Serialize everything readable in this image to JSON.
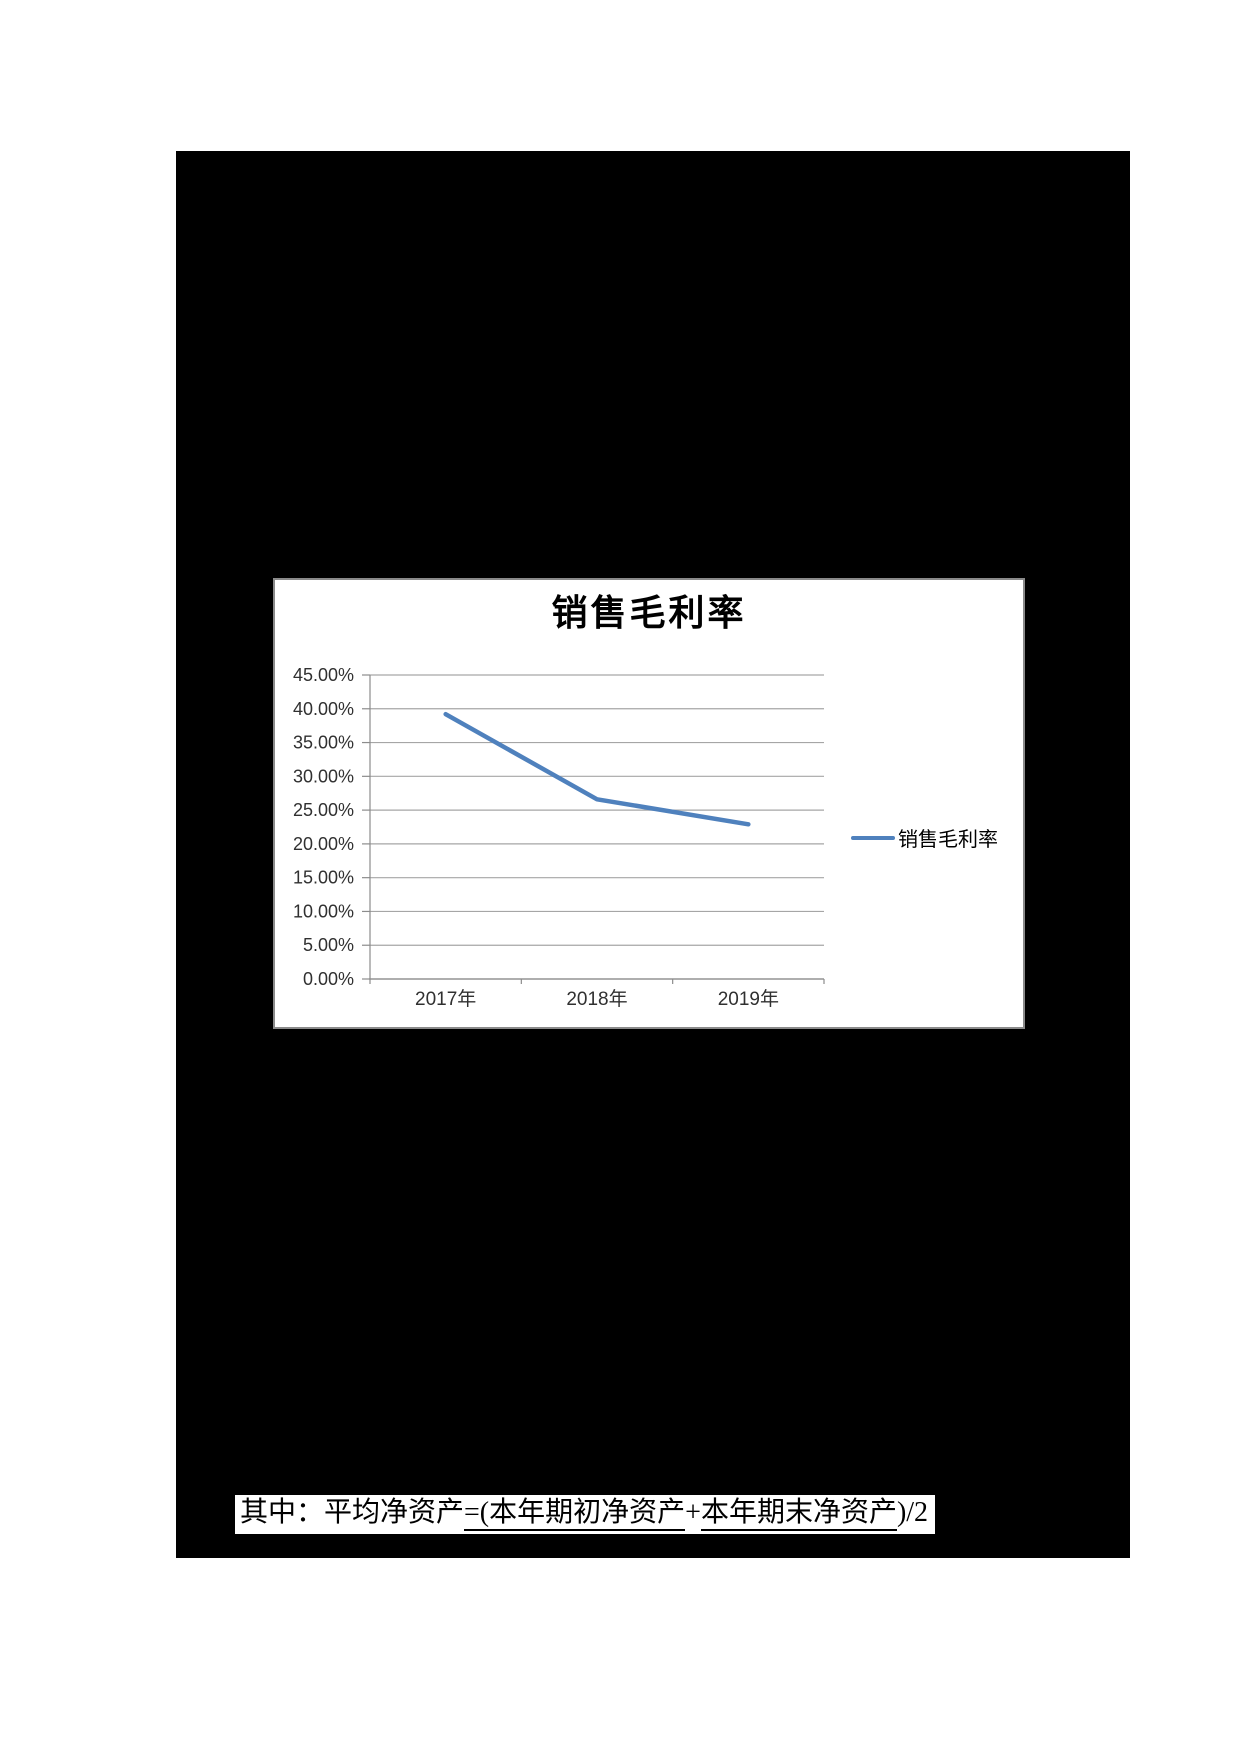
{
  "page": {
    "background_color": "#ffffff",
    "content_background_color": "#000000"
  },
  "chart_data": {
    "type": "line",
    "title": "销售毛利率",
    "categories": [
      "2017年",
      "2018年",
      "2019年"
    ],
    "series": [
      {
        "name": "销售毛利率",
        "values": [
          39.2,
          26.6,
          22.9
        ]
      }
    ],
    "unit": "percent",
    "ylim": [
      0,
      45
    ],
    "ytick_step": 5,
    "ytick_labels": [
      "45.00%",
      "40.00%",
      "35.00%",
      "30.00%",
      "25.00%",
      "20.00%",
      "15.00%",
      "10.00%",
      "5.00%",
      "0.00%"
    ],
    "xlabel": "",
    "ylabel": "",
    "grid": true,
    "legend_position": "right",
    "line_color": "#4F81BD",
    "grid_color": "#A6A6A6",
    "axis_color": "#8c8c8c",
    "tick_label_color": "#303030"
  },
  "formula": {
    "prefix": "其中：平均净资产",
    "underline1": "=(本年期初净资产",
    "plus": "+",
    "underline2": "本年期末净资产",
    "suffix": ")/2"
  }
}
